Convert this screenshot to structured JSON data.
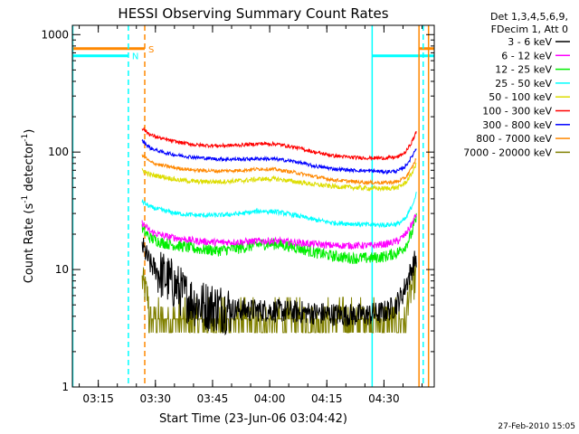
{
  "chart_data": {
    "type": "line",
    "title": "HESSI Observing Summary Count Rates",
    "xlabel": "Start Time (23-Jun-06 03:04:42)",
    "ylabel_main": "Count Rate (s",
    "ylabel_sup1": "-1",
    "ylabel_mid": " detector",
    "ylabel_sup2": "-1",
    "ylabel_end": ")",
    "y_scale": "log",
    "ylim": [
      1,
      1200
    ],
    "xlim_minutes": [
      3.5,
      98.5
    ],
    "x_ticks": [
      {
        "label": "03:15",
        "t": 10.3
      },
      {
        "label": "03:30",
        "t": 25.3
      },
      {
        "label": "03:45",
        "t": 40.3
      },
      {
        "label": "04:00",
        "t": 55.3
      },
      {
        "label": "04:15",
        "t": 70.3
      },
      {
        "label": "04:30",
        "t": 85.3
      }
    ],
    "y_ticks": [
      {
        "label": "1",
        "v": 1
      },
      {
        "label": "10",
        "v": 10
      },
      {
        "label": "100",
        "v": 100
      },
      {
        "label": "1000",
        "v": 1000
      }
    ],
    "legend_header": [
      "Det 1,3,4,5,6,9,",
      "FDecim 1, Att 0"
    ],
    "legend_position": "right",
    "data_start": 21.8,
    "data_end": 93.9,
    "series": [
      {
        "name": "3 - 6 keV",
        "color": "#000000",
        "noise": 0.1,
        "points": [
          [
            21.8,
            16
          ],
          [
            24,
            11
          ],
          [
            27,
            9
          ],
          [
            30,
            7.5
          ],
          [
            33,
            6.0
          ],
          [
            37,
            5.0
          ],
          [
            41,
            4.8
          ],
          [
            45,
            4.6
          ],
          [
            50,
            4.5
          ],
          [
            55,
            4.5
          ],
          [
            60,
            4.4
          ],
          [
            65,
            4.3
          ],
          [
            70,
            4.2
          ],
          [
            75,
            4.1
          ],
          [
            80,
            4.1
          ],
          [
            85,
            4.3
          ],
          [
            88,
            4.8
          ],
          [
            90,
            6
          ],
          [
            92,
            9
          ],
          [
            93.9,
            13
          ]
        ]
      },
      {
        "name": "6 - 12 keV",
        "color": "#ff00ff",
        "noise": 0.03,
        "points": [
          [
            21.8,
            25
          ],
          [
            24,
            21
          ],
          [
            27,
            19.5
          ],
          [
            31,
            18.5
          ],
          [
            36,
            17.5
          ],
          [
            42,
            17
          ],
          [
            48,
            17.2
          ],
          [
            53,
            17.5
          ],
          [
            57,
            17.5
          ],
          [
            62,
            17
          ],
          [
            67,
            16.5
          ],
          [
            72,
            16
          ],
          [
            77,
            16
          ],
          [
            82,
            16
          ],
          [
            86,
            16.5
          ],
          [
            89,
            17.5
          ],
          [
            91,
            20
          ],
          [
            92.5,
            24
          ],
          [
            93.9,
            30
          ]
        ]
      },
      {
        "name": "12 - 25 keV",
        "color": "#00ee00",
        "noise": 0.05,
        "points": [
          [
            21.8,
            22
          ],
          [
            24,
            18.5
          ],
          [
            27,
            17
          ],
          [
            31,
            16
          ],
          [
            36,
            15
          ],
          [
            42,
            14.5
          ],
          [
            48,
            15.3
          ],
          [
            53,
            16.5
          ],
          [
            57,
            16.5
          ],
          [
            62,
            15.5
          ],
          [
            67,
            14
          ],
          [
            72,
            13
          ],
          [
            77,
            12.5
          ],
          [
            82,
            12.5
          ],
          [
            86,
            13
          ],
          [
            89,
            14
          ],
          [
            91,
            16
          ],
          [
            92.5,
            20
          ],
          [
            93.9,
            28
          ]
        ]
      },
      {
        "name": "25 - 50 keV",
        "color": "#00ffff",
        "noise": 0.02,
        "points": [
          [
            21.8,
            38
          ],
          [
            24,
            34
          ],
          [
            27,
            32
          ],
          [
            31,
            30
          ],
          [
            36,
            29
          ],
          [
            42,
            29
          ],
          [
            48,
            30
          ],
          [
            53,
            31.5
          ],
          [
            57,
            31
          ],
          [
            62,
            29
          ],
          [
            67,
            26.5
          ],
          [
            72,
            25
          ],
          [
            77,
            24.5
          ],
          [
            82,
            24
          ],
          [
            86,
            24
          ],
          [
            89,
            24.5
          ],
          [
            91,
            27
          ],
          [
            92.5,
            34
          ],
          [
            93.9,
            45
          ]
        ]
      },
      {
        "name": "50 - 100 keV",
        "color": "#dddd00",
        "noise": 0.02,
        "points": [
          [
            21.8,
            70
          ],
          [
            24,
            64
          ],
          [
            27,
            62
          ],
          [
            31,
            58
          ],
          [
            36,
            56
          ],
          [
            42,
            56
          ],
          [
            48,
            57
          ],
          [
            53,
            59
          ],
          [
            57,
            59
          ],
          [
            62,
            56
          ],
          [
            67,
            53
          ],
          [
            72,
            51
          ],
          [
            77,
            50
          ],
          [
            82,
            49
          ],
          [
            86,
            49
          ],
          [
            89,
            50
          ],
          [
            91,
            55
          ],
          [
            92.5,
            65
          ],
          [
            93.9,
            80
          ]
        ]
      },
      {
        "name": "100 - 300 keV",
        "color": "#ff0000",
        "noise": 0.015,
        "points": [
          [
            21.8,
            160
          ],
          [
            24,
            140
          ],
          [
            27,
            130
          ],
          [
            31,
            122
          ],
          [
            36,
            115
          ],
          [
            42,
            113
          ],
          [
            48,
            115
          ],
          [
            53,
            118
          ],
          [
            57,
            117
          ],
          [
            62,
            110
          ],
          [
            67,
            100
          ],
          [
            72,
            93
          ],
          [
            77,
            90
          ],
          [
            82,
            89
          ],
          [
            86,
            89
          ],
          [
            89,
            91
          ],
          [
            91,
            100
          ],
          [
            92.5,
            120
          ],
          [
            93.9,
            150
          ]
        ]
      },
      {
        "name": "300 - 800 keV",
        "color": "#0000ff",
        "noise": 0.015,
        "points": [
          [
            21.8,
            125
          ],
          [
            24,
            108
          ],
          [
            27,
            100
          ],
          [
            31,
            94
          ],
          [
            36,
            90
          ],
          [
            42,
            87
          ],
          [
            48,
            87
          ],
          [
            53,
            88
          ],
          [
            57,
            87
          ],
          [
            62,
            83
          ],
          [
            67,
            76
          ],
          [
            72,
            72
          ],
          [
            77,
            70
          ],
          [
            82,
            69
          ],
          [
            86,
            68
          ],
          [
            89,
            69
          ],
          [
            91,
            76
          ],
          [
            92.5,
            90
          ],
          [
            93.9,
            110
          ]
        ]
      },
      {
        "name": "800 - 7000 keV",
        "color": "#ff8800",
        "noise": 0.015,
        "points": [
          [
            21.8,
            95
          ],
          [
            24,
            82
          ],
          [
            27,
            77
          ],
          [
            31,
            73
          ],
          [
            36,
            70
          ],
          [
            42,
            69
          ],
          [
            48,
            70
          ],
          [
            53,
            72
          ],
          [
            57,
            71
          ],
          [
            62,
            67
          ],
          [
            67,
            62
          ],
          [
            72,
            58
          ],
          [
            77,
            56
          ],
          [
            82,
            55
          ],
          [
            86,
            55
          ],
          [
            89,
            56
          ],
          [
            91,
            61
          ],
          [
            92.5,
            72
          ],
          [
            93.9,
            90
          ]
        ]
      },
      {
        "name": "7000 - 20000 keV",
        "color": "#808000",
        "noise": 0.0,
        "points": [
          [
            21.8,
            8
          ],
          [
            24,
            5
          ],
          [
            27,
            4
          ],
          [
            30,
            3.8
          ],
          [
            33,
            3.8
          ],
          [
            37,
            3.8
          ],
          [
            41,
            3.8
          ],
          [
            45,
            3.8
          ],
          [
            50,
            3.8
          ],
          [
            55,
            3.8
          ],
          [
            60,
            3.8
          ],
          [
            65,
            3.8
          ],
          [
            70,
            3.8
          ],
          [
            75,
            3.8
          ],
          [
            80,
            3.8
          ],
          [
            85,
            3.8
          ],
          [
            88,
            3.8
          ],
          [
            90,
            4.5
          ],
          [
            92,
            6
          ],
          [
            93.9,
            9
          ]
        ]
      }
    ],
    "markers": [
      {
        "label": "S",
        "color": "#ff8800",
        "level": 760,
        "t_end": 22.5,
        "t_start_after": 94.5
      },
      {
        "label": "N",
        "color": "#00ffff",
        "level": 660,
        "t_end": 18.2,
        "t_start_after": 82.2
      }
    ],
    "vertical_lines": [
      {
        "t": 3.6,
        "color": "#00ffff",
        "dash": false
      },
      {
        "t": 18.2,
        "color": "#00ffff",
        "dash": true
      },
      {
        "t": 22.5,
        "color": "#ff8800",
        "dash": true
      },
      {
        "t": 82.2,
        "color": "#00ffff",
        "dash": false
      },
      {
        "t": 94.5,
        "color": "#ff8800",
        "dash": false
      },
      {
        "t": 95.6,
        "color": "#00ffff",
        "dash": true
      },
      {
        "t": 97.0,
        "color": "#ff8800",
        "dash": false
      }
    ]
  },
  "footer_date": "27-Feb-2010 15:05"
}
